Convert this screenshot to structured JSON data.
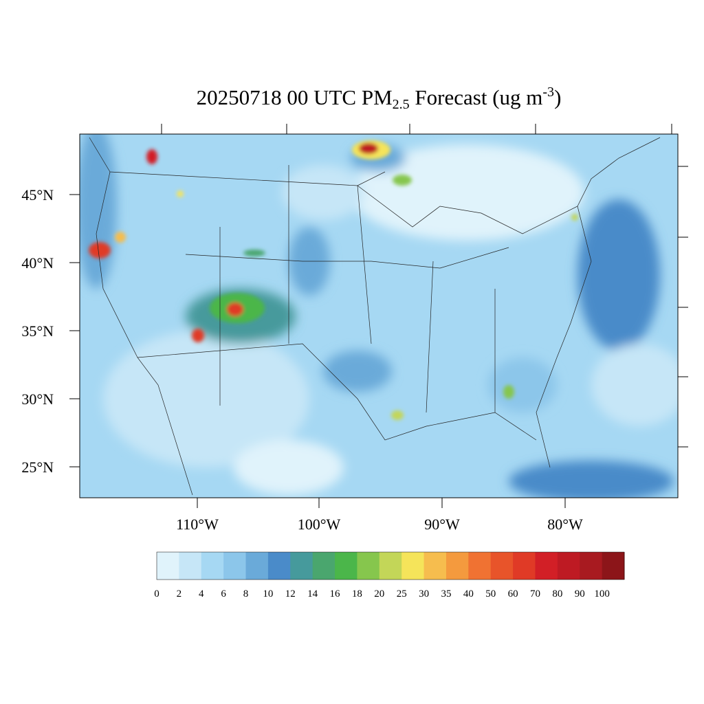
{
  "title": {
    "main": "20250718 00 UTC PM",
    "sub": "2.5",
    "mid": " Forecast (ug m",
    "sup": "-3",
    "end": ")"
  },
  "lat_labels": [
    "45°N",
    "40°N",
    "35°N",
    "30°N",
    "25°N"
  ],
  "lon_labels": [
    "110°W",
    "100°W",
    "90°W",
    "80°W"
  ],
  "colorbar": {
    "labels": [
      0,
      2,
      4,
      6,
      8,
      10,
      12,
      14,
      16,
      18,
      20,
      25,
      30,
      35,
      40,
      50,
      60,
      70,
      80,
      90,
      100
    ],
    "colors": [
      "#e0f3fb",
      "#c6e6f7",
      "#a6d8f3",
      "#8cc6ea",
      "#6aaad9",
      "#4a8bc9",
      "#469a9c",
      "#4aa66e",
      "#4bb64a",
      "#86c64d",
      "#c3d658",
      "#f5e45a",
      "#f6bd4e",
      "#f49a3e",
      "#f07232",
      "#e8542a",
      "#e03a26",
      "#d21f26",
      "#be1a23",
      "#a81a20",
      "#8c1519"
    ]
  }
}
